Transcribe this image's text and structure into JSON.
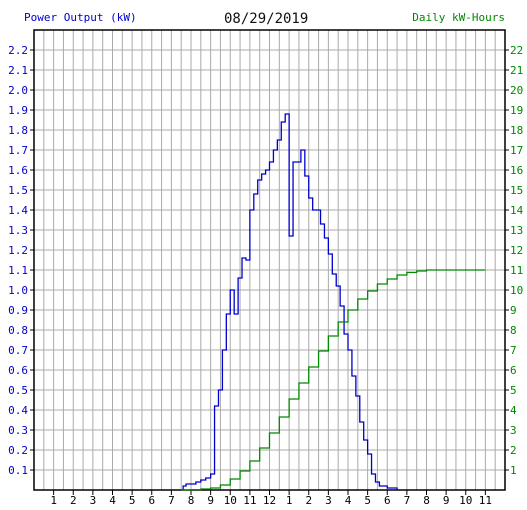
{
  "header": {
    "left_title": "Power Output (kW)",
    "date": "08/29/2019",
    "right_title": "Daily kW-Hours"
  },
  "colors": {
    "power": "#0000cc",
    "energy": "#008800",
    "grid": "#aaaaaa",
    "frame": "#000000"
  },
  "chart_data": {
    "type": "line",
    "x_tick_labels": [
      "1",
      "2",
      "3",
      "4",
      "5",
      "6",
      "7",
      "8",
      "9",
      "10",
      "11",
      "12",
      "1",
      "2",
      "3",
      "4",
      "5",
      "6",
      "7",
      "8",
      "9",
      "10",
      "11"
    ],
    "y_left": {
      "label": "Power Output (kW)",
      "range": [
        0,
        2.3
      ],
      "ticks": [
        "0.1",
        "0.2",
        "0.3",
        "0.4",
        "0.5",
        "0.6",
        "0.7",
        "0.8",
        "0.9",
        "1.0",
        "1.1",
        "1.2",
        "1.3",
        "1.4",
        "1.5",
        "1.6",
        "1.7",
        "1.8",
        "1.9",
        "2.0",
        "2.1",
        "2.2"
      ]
    },
    "y_right": {
      "label": "Daily kW-Hours",
      "range": [
        0,
        23
      ],
      "ticks": [
        "1",
        "2",
        "3",
        "4",
        "5",
        "6",
        "7",
        "8",
        "9",
        "10",
        "11",
        "12",
        "13",
        "14",
        "15",
        "16",
        "17",
        "18",
        "19",
        "20",
        "21",
        "22"
      ]
    },
    "grid": true,
    "x_unit": "hour of day",
    "series": [
      {
        "name": "Power Output (kW)",
        "axis": "left",
        "step": true,
        "points": [
          [
            7.5,
            0
          ],
          [
            7.6,
            0.02
          ],
          [
            7.75,
            0.03
          ],
          [
            8,
            0.03
          ],
          [
            8.25,
            0.04
          ],
          [
            8.5,
            0.05
          ],
          [
            8.75,
            0.06
          ],
          [
            9,
            0.08
          ],
          [
            9.2,
            0.42
          ],
          [
            9.4,
            0.5
          ],
          [
            9.6,
            0.7
          ],
          [
            9.8,
            0.88
          ],
          [
            10,
            1.0
          ],
          [
            10.2,
            0.88
          ],
          [
            10.4,
            1.06
          ],
          [
            10.6,
            1.16
          ],
          [
            10.8,
            1.15
          ],
          [
            11,
            1.4
          ],
          [
            11.2,
            1.48
          ],
          [
            11.4,
            1.55
          ],
          [
            11.6,
            1.58
          ],
          [
            11.8,
            1.6
          ],
          [
            12,
            1.64
          ],
          [
            12.2,
            1.7
          ],
          [
            12.4,
            1.75
          ],
          [
            12.6,
            1.84
          ],
          [
            12.8,
            1.88
          ],
          [
            13,
            1.27
          ],
          [
            13.2,
            1.64
          ],
          [
            13.4,
            1.64
          ],
          [
            13.6,
            1.7
          ],
          [
            13.8,
            1.57
          ],
          [
            14,
            1.46
          ],
          [
            14.2,
            1.4
          ],
          [
            14.4,
            1.4
          ],
          [
            14.6,
            1.33
          ],
          [
            14.8,
            1.26
          ],
          [
            15,
            1.18
          ],
          [
            15.2,
            1.08
          ],
          [
            15.4,
            1.02
          ],
          [
            15.6,
            0.92
          ],
          [
            15.8,
            0.78
          ],
          [
            16,
            0.7
          ],
          [
            16.2,
            0.57
          ],
          [
            16.4,
            0.47
          ],
          [
            16.6,
            0.34
          ],
          [
            16.8,
            0.25
          ],
          [
            17,
            0.18
          ],
          [
            17.2,
            0.08
          ],
          [
            17.4,
            0.04
          ],
          [
            17.6,
            0.02
          ],
          [
            18,
            0.01
          ],
          [
            18.5,
            0.0
          ]
        ]
      },
      {
        "name": "Daily kW-Hours",
        "axis": "right",
        "step": true,
        "points": [
          [
            7.5,
            0
          ],
          [
            8,
            0.02
          ],
          [
            8.5,
            0.05
          ],
          [
            9,
            0.1
          ],
          [
            9.5,
            0.25
          ],
          [
            10,
            0.55
          ],
          [
            10.5,
            0.95
          ],
          [
            11,
            1.45
          ],
          [
            11.5,
            2.1
          ],
          [
            12,
            2.85
          ],
          [
            12.5,
            3.65
          ],
          [
            13,
            4.55
          ],
          [
            13.5,
            5.35
          ],
          [
            14,
            6.15
          ],
          [
            14.5,
            6.95
          ],
          [
            15,
            7.7
          ],
          [
            15.5,
            8.4
          ],
          [
            16,
            9.0
          ],
          [
            16.5,
            9.55
          ],
          [
            17,
            9.95
          ],
          [
            17.5,
            10.3
          ],
          [
            18,
            10.55
          ],
          [
            18.5,
            10.75
          ],
          [
            19,
            10.88
          ],
          [
            19.5,
            10.95
          ],
          [
            20,
            11.0
          ],
          [
            21,
            11.0
          ],
          [
            23,
            11.0
          ]
        ]
      }
    ]
  }
}
